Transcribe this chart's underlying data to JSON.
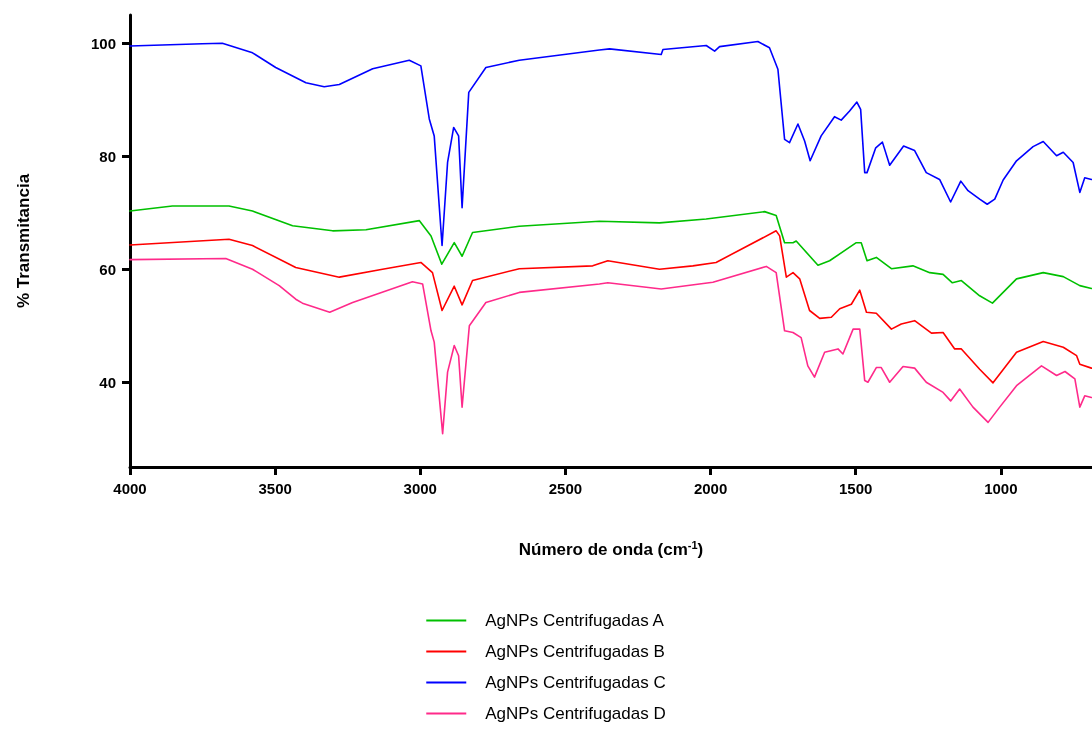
{
  "chart_data": {
    "type": "line",
    "xlabel": "Número de onda (cm$^{-1}$)",
    "ylabel": "% Transmitancia",
    "xlim": [
      4000,
      686
    ],
    "xticks": [
      4000,
      3500,
      3000,
      2500,
      2000,
      1500,
      1000
    ],
    "ylim": [
      25,
      105
    ],
    "yticks": [
      40,
      60,
      80,
      100
    ],
    "grid": false,
    "legend": "bottom",
    "marker": "none",
    "line_style": "solid",
    "series": [
      {
        "name": "AgNPs Centrifugadas A",
        "color": "#00c000",
        "x": [
          4000,
          3854,
          3659,
          3578,
          3440,
          3302,
          3187,
          3003,
          2963,
          2926,
          2883,
          2856,
          2820,
          2659,
          2383,
          2176,
          2015,
          1814,
          1774,
          1745,
          1716,
          1705,
          1630,
          1590,
          1498,
          1481,
          1461,
          1429,
          1377,
          1303,
          1245,
          1199,
          1167,
          1136,
          1073,
          1029,
          946,
          854,
          785,
          728,
          688
        ],
        "values": [
          70.3,
          71.2,
          71.2,
          70.3,
          67.7,
          66.8,
          67.0,
          68.6,
          65.9,
          60.9,
          64.7,
          62.3,
          66.5,
          67.6,
          68.5,
          68.2,
          68.9,
          70.2,
          69.5,
          64.7,
          64.7,
          65.0,
          60.7,
          61.5,
          64.7,
          64.7,
          61.5,
          62.1,
          60.1,
          60.6,
          59.4,
          59.1,
          57.6,
          58.0,
          55.3,
          54.0,
          58.3,
          59.4,
          58.7,
          57.1,
          56.6
        ]
      },
      {
        "name": "AgNPs Centrifugadas B",
        "color": "#ff0000",
        "x": [
          4000,
          3659,
          3578,
          3429,
          3279,
          3130,
          2998,
          2958,
          2925,
          2883,
          2856,
          2820,
          2659,
          2406,
          2354,
          2176,
          2061,
          1981,
          1774,
          1762,
          1739,
          1716,
          1693,
          1659,
          1624,
          1584,
          1555,
          1515,
          1486,
          1463,
          1429,
          1377,
          1343,
          1297,
          1239,
          1199,
          1159,
          1136,
          1073,
          1027,
          946,
          854,
          785,
          739,
          728,
          688
        ],
        "values": [
          64.3,
          65.3,
          64.2,
          60.3,
          58.6,
          60.0,
          61.2,
          59.4,
          52.7,
          57.0,
          53.7,
          58.0,
          60.1,
          60.6,
          61.5,
          60.0,
          60.6,
          61.2,
          66.8,
          65.9,
          58.6,
          59.4,
          58.3,
          52.7,
          51.3,
          51.5,
          53.0,
          53.8,
          56.3,
          52.4,
          52.2,
          49.4,
          50.3,
          50.9,
          48.7,
          48.8,
          45.9,
          45.9,
          42.3,
          39.9,
          45.3,
          47.2,
          46.2,
          44.7,
          43.2,
          42.5
        ]
      },
      {
        "name": "AgNPs Centrifugadas C",
        "color": "#0000ff",
        "x": [
          4000,
          3751,
          3682,
          3578,
          3498,
          3394,
          3331,
          3279,
          3164,
          3038,
          2998,
          2969,
          2952,
          2925,
          2906,
          2885,
          2868,
          2856,
          2833,
          2774,
          2659,
          2383,
          2348,
          2170,
          2164,
          2015,
          1986,
          1969,
          1837,
          1797,
          1768,
          1745,
          1728,
          1699,
          1676,
          1657,
          1619,
          1573,
          1550,
          1521,
          1496,
          1483,
          1469,
          1461,
          1431,
          1408,
          1383,
          1335,
          1297,
          1257,
          1211,
          1173,
          1138,
          1113,
          1073,
          1047,
          1021,
          992,
          946,
          889,
          854,
          808,
          785,
          751,
          728,
          711,
          688
        ],
        "values": [
          99.5,
          99.9,
          100.0,
          98.3,
          95.7,
          93.0,
          92.3,
          92.7,
          95.5,
          97.0,
          96.0,
          86.6,
          83.6,
          64.2,
          78.9,
          85.1,
          83.6,
          70.9,
          91.3,
          95.7,
          97.0,
          98.8,
          99.0,
          98.0,
          98.9,
          99.6,
          98.6,
          99.4,
          100.3,
          99.2,
          95.4,
          83.0,
          82.4,
          85.7,
          82.7,
          79.2,
          83.6,
          87.0,
          86.4,
          88.0,
          89.6,
          88.3,
          77.1,
          77.1,
          81.5,
          82.5,
          78.4,
          81.8,
          81.0,
          77.1,
          75.9,
          71.9,
          75.6,
          73.9,
          72.4,
          71.5,
          72.4,
          75.8,
          79.2,
          81.7,
          82.6,
          80.1,
          80.7,
          78.9,
          73.6,
          76.2,
          75.9
        ]
      },
      {
        "name": "AgNPs Centrifugadas D",
        "color": "#ff2a8a",
        "x": [
          4000,
          3670,
          3578,
          3486,
          3429,
          3406,
          3312,
          3233,
          3027,
          2992,
          2963,
          2952,
          2923,
          2906,
          2883,
          2868,
          2856,
          2831,
          2774,
          2659,
          2383,
          2354,
          2170,
          1992,
          1808,
          1774,
          1745,
          1716,
          1688,
          1665,
          1642,
          1607,
          1561,
          1544,
          1509,
          1486,
          1469,
          1458,
          1429,
          1412,
          1383,
          1337,
          1297,
          1257,
          1199,
          1173,
          1142,
          1096,
          1044,
          1004,
          946,
          860,
          808,
          779,
          745,
          728,
          711,
          688
        ],
        "values": [
          61.7,
          61.9,
          60.0,
          57.1,
          54.7,
          54.0,
          52.4,
          54.1,
          57.8,
          57.4,
          49.1,
          47.1,
          30.9,
          41.8,
          46.5,
          44.7,
          35.6,
          50.0,
          54.1,
          55.9,
          57.4,
          57.6,
          56.5,
          57.7,
          60.5,
          59.4,
          49.1,
          48.8,
          47.9,
          42.9,
          40.9,
          45.3,
          45.9,
          45.0,
          49.4,
          49.4,
          40.3,
          40.0,
          42.6,
          42.6,
          40.0,
          42.8,
          42.5,
          40.0,
          38.2,
          36.7,
          38.8,
          35.6,
          32.9,
          35.6,
          39.4,
          42.9,
          41.2,
          41.9,
          40.6,
          35.6,
          37.6,
          37.3
        ]
      }
    ]
  }
}
